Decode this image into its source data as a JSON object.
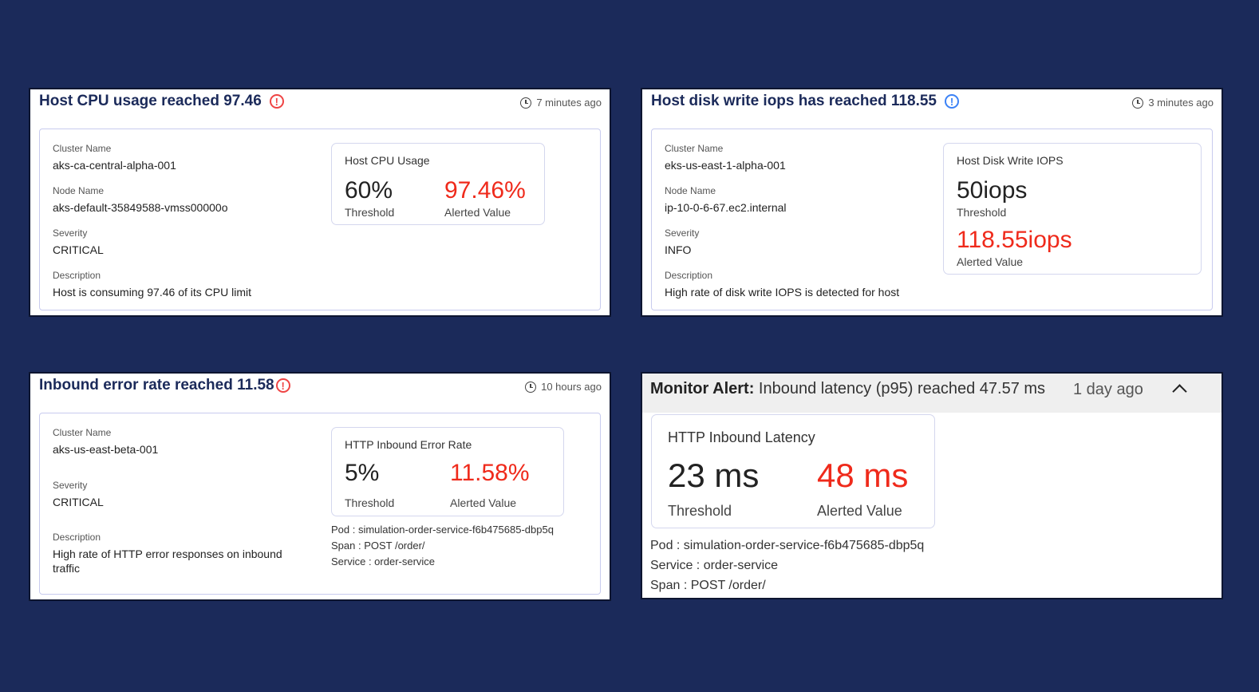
{
  "cards": [
    {
      "title": "Host CPU usage reached 97.46",
      "severity_icon": "critical-alert-icon",
      "time": "7 minutes ago",
      "fields": [
        {
          "label": "Cluster Name",
          "value": "aks-ca-central-alpha-001"
        },
        {
          "label": "Node Name",
          "value": "aks-default-35849588-vmss00000o"
        },
        {
          "label": "Severity",
          "value": "CRITICAL"
        },
        {
          "label": "Description",
          "value": "Host is consuming 97.46 of its CPU limit"
        }
      ],
      "metric": {
        "title": "Host CPU Usage",
        "threshold": "60%",
        "threshold_label": "Threshold",
        "alerted": "97.46%",
        "alerted_label": "Alerted Value"
      }
    },
    {
      "title": "Host disk write iops has reached 118.55",
      "severity_icon": "info-alert-icon",
      "time": "3 minutes ago",
      "fields": [
        {
          "label": "Cluster Name",
          "value": "eks-us-east-1-alpha-001"
        },
        {
          "label": "Node Name",
          "value": "ip-10-0-6-67.ec2.internal"
        },
        {
          "label": "Severity",
          "value": "INFO"
        },
        {
          "label": "Description",
          "value": "High rate of disk write IOPS is detected for host"
        }
      ],
      "metric": {
        "title": "Host Disk Write IOPS",
        "threshold": "50iops",
        "threshold_label": "Threshold",
        "alerted": "118.55iops",
        "alerted_label": "Alerted Value"
      }
    },
    {
      "title": "Inbound error rate reached 11.58",
      "severity_icon": "critical-alert-icon",
      "time": "10 hours ago",
      "fields": [
        {
          "label": "Cluster Name",
          "value": "aks-us-east-beta-001"
        },
        {
          "label": "Severity",
          "value": "CRITICAL"
        },
        {
          "label": "Description",
          "value": "High rate of HTTP error responses on inbound traffic"
        }
      ],
      "metric": {
        "title": "HTTP Inbound Error Rate",
        "threshold": "5%",
        "threshold_label": "Threshold",
        "alerted": "11.58%",
        "alerted_label": "Alerted Value"
      },
      "extra": [
        "Pod : simulation-order-service-f6b475685-dbp5q",
        "Span : POST /order/",
        "Service : order-service"
      ]
    },
    {
      "title_prefix": "Monitor Alert:",
      "title": "Inbound latency (p95) reached 47.57 ms",
      "time": "1 day ago",
      "metric": {
        "title": "HTTP Inbound Latency",
        "threshold": "23 ms",
        "threshold_label": "Threshold",
        "alerted": "48 ms",
        "alerted_label": "Alerted Value"
      },
      "extra": [
        "Pod : simulation-order-service-f6b475685-dbp5q",
        "Service : order-service",
        "Span : POST /order/"
      ]
    }
  ],
  "icons": {
    "alert_glyph": "!",
    "clock": "clock-icon",
    "collapse": "chevron-up-icon"
  },
  "colors": {
    "background": "#1b2a5a",
    "title": "#1b2a5a",
    "alerted_value": "#ef2a1b",
    "critical_icon": "#ef4444",
    "info_icon": "#3b82f6"
  }
}
